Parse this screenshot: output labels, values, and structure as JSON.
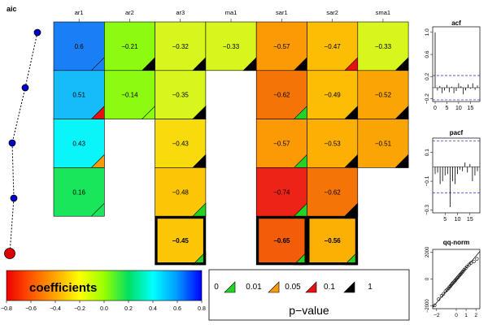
{
  "chart_data": [
    {
      "type": "line",
      "title": "aic",
      "points": [
        {
          "model": 1,
          "aic_rank": 1
        },
        {
          "model": 2,
          "aic_rank": 2
        },
        {
          "model": 3,
          "aic_rank": 3
        },
        {
          "model": 4,
          "aic_rank": 4
        },
        {
          "model": 5,
          "aic_rank": 5
        }
      ],
      "point_colors": [
        "#0000cc",
        "#0000cc",
        "#0000cc",
        "#0000cc",
        "#dd0000"
      ],
      "note": "dotted path connecting model markers; the last (selected) model is drawn larger in red"
    },
    {
      "type": "heatmap",
      "columns": [
        "ar1",
        "ar2",
        "ar3",
        "ma1",
        "sar1",
        "sar2",
        "sma1"
      ],
      "rows": [
        {
          "values": [
            0.6,
            -0.21,
            -0.32,
            -0.33,
            -0.57,
            -0.47,
            -0.33
          ],
          "labels": [
            "0.6",
            "−0.21",
            "−0.32",
            "−0.33",
            "−0.57",
            "−0.47",
            "−0.33"
          ],
          "pval": [
            "1",
            "0.1",
            "0.1",
            "0.1",
            "0.1",
            "0.05",
            "0.1"
          ],
          "colors": [
            "#1a7ff5",
            "#8dfa12",
            "#d8f51e",
            "#d8f51e",
            "#fb9a04",
            "#fdbd04",
            "#d8f51e"
          ]
        },
        {
          "values": [
            0.51,
            -0.14,
            -0.35,
            null,
            -0.62,
            -0.49,
            -0.52
          ],
          "labels": [
            "0.51",
            "−0.14",
            "−0.35",
            "",
            "−0.62",
            "−0.49",
            "−0.52"
          ],
          "pval": [
            "0.05",
            "1",
            "0.1",
            "",
            "0",
            "0.1",
            "0.1"
          ],
          "colors": [
            "#16bcfa",
            "#8dfa12",
            "#d8f51e",
            null,
            "#f57408",
            "#fdbd04",
            "#fba504"
          ]
        },
        {
          "values": [
            0.43,
            null,
            -0.43,
            null,
            -0.57,
            -0.53,
            -0.51
          ],
          "labels": [
            "0.43",
            "",
            "−0.43",
            "",
            "−0.57",
            "−0.53",
            "−0.51"
          ],
          "pval": [
            "0.01",
            "",
            "0.1",
            "",
            "0",
            "0.1",
            "0.1"
          ],
          "colors": [
            "#0af5fa",
            null,
            "#f7db0c",
            null,
            "#fb9a04",
            "#fdaf04",
            "#fba504"
          ]
        },
        {
          "values": [
            0.16,
            null,
            -0.48,
            null,
            -0.74,
            -0.62,
            null
          ],
          "labels": [
            "0.16",
            "",
            "−0.48",
            "",
            "−0.74",
            "−0.62",
            ""
          ],
          "pval": [
            "1",
            "",
            "0",
            "",
            "0",
            "0.1",
            ""
          ],
          "colors": [
            "#1ae65c",
            null,
            "#fcc506",
            null,
            "#ee2318",
            "#f57408",
            null
          ]
        },
        {
          "values": [
            null,
            null,
            -0.45,
            null,
            -0.65,
            -0.56,
            null
          ],
          "labels": [
            "",
            "",
            "−0.45",
            "",
            "−0.65",
            "−0.56",
            ""
          ],
          "pval": [
            "",
            "",
            "0",
            "",
            "0",
            "0",
            ""
          ],
          "colors": [
            null,
            null,
            "#fcc506",
            null,
            "#f35c08",
            "#fcb004",
            null
          ],
          "highlighted": true
        }
      ],
      "pvalue_colors": {
        "0": "#22d422",
        "0.01": "#f59a0a",
        "0.05": "#e61010",
        "0.1": "#000000",
        "1": null
      }
    },
    {
      "type": "bar",
      "title": "acf",
      "ylim": [
        -0.25,
        1.1
      ],
      "yticks": [
        "−0.2",
        "0.2",
        "0.6",
        "1.0"
      ],
      "xticks": [
        "0",
        "5",
        "10",
        "15"
      ],
      "lags": [
        0,
        1,
        2,
        3,
        4,
        5,
        6,
        7,
        8,
        9,
        10,
        11,
        12,
        13,
        14,
        15,
        16,
        17,
        18
      ],
      "values": [
        1.0,
        -0.05,
        0.03,
        -0.1,
        -0.05,
        0.05,
        -0.08,
        0.02,
        -0.1,
        -0.06,
        0.08,
        0.03,
        -0.12,
        -0.05,
        0.06,
        -0.02,
        0.08,
        -0.04,
        0.04
      ],
      "conf": 0.22
    },
    {
      "type": "bar",
      "title": "pacf",
      "ylim": [
        -0.32,
        0.2
      ],
      "yticks": [
        "−0.3",
        "−0.1",
        "0.1"
      ],
      "xticks": [
        "5",
        "10",
        "15"
      ],
      "lags": [
        1,
        2,
        3,
        4,
        5,
        6,
        7,
        8,
        9,
        10,
        11,
        12,
        13,
        14,
        15,
        16,
        17,
        18
      ],
      "values": [
        -0.05,
        -0.04,
        -0.12,
        -0.1,
        -0.06,
        -0.05,
        -0.28,
        -0.1,
        -0.12,
        -0.05,
        -0.02,
        -0.03,
        0.03,
        -0.04,
        0.02,
        -0.1,
        -0.06,
        -0.03
      ],
      "conf": 0.18
    },
    {
      "type": "scatter",
      "title": "qq-norm",
      "xlim": [
        -2.4,
        2.4
      ],
      "ylim": [
        -2200,
        2200
      ],
      "xticks": [
        "−2",
        "0",
        "1",
        "2"
      ],
      "yticks": [
        "−2000",
        "0",
        "2000"
      ],
      "points": [
        [
          -2.2,
          -1950
        ],
        [
          -1.8,
          -1500
        ],
        [
          -1.5,
          -1250
        ],
        [
          -1.3,
          -1100
        ],
        [
          -1.1,
          -900
        ],
        [
          -0.95,
          -800
        ],
        [
          -0.8,
          -700
        ],
        [
          -0.7,
          -600
        ],
        [
          -0.6,
          -520
        ],
        [
          -0.5,
          -420
        ],
        [
          -0.4,
          -340
        ],
        [
          -0.3,
          -260
        ],
        [
          -0.2,
          -180
        ],
        [
          -0.1,
          -90
        ],
        [
          0.0,
          -10
        ],
        [
          0.1,
          80
        ],
        [
          0.2,
          160
        ],
        [
          0.3,
          250
        ],
        [
          0.4,
          330
        ],
        [
          0.5,
          410
        ],
        [
          0.6,
          500
        ],
        [
          0.7,
          590
        ],
        [
          0.8,
          690
        ],
        [
          0.95,
          800
        ],
        [
          1.1,
          930
        ],
        [
          1.3,
          1080
        ],
        [
          1.5,
          1200
        ],
        [
          1.8,
          1300
        ],
        [
          2.1,
          1500
        ]
      ],
      "line": [
        [
          -2.4,
          -2100
        ],
        [
          2.4,
          2050
        ]
      ]
    }
  ],
  "colorbar": {
    "title": "coefficients",
    "ticks": [
      "−0.8",
      "−0.6",
      "−0.4",
      "−0.2",
      "0.0",
      "0.2",
      "0.4",
      "0.6",
      "0.8"
    ],
    "stops": [
      "#ee0000",
      "#ff5500",
      "#ffa500",
      "#ffff00",
      "#99ff00",
      "#00e060",
      "#00ffff",
      "#0099ff",
      "#0000ff"
    ]
  },
  "pvalue_legend": {
    "title": "p−value",
    "labels": [
      "0",
      "0.01",
      "0.05",
      "0.1",
      "1"
    ],
    "colors": [
      "#22d422",
      "#f59a0a",
      "#e61010",
      "#000000"
    ]
  }
}
